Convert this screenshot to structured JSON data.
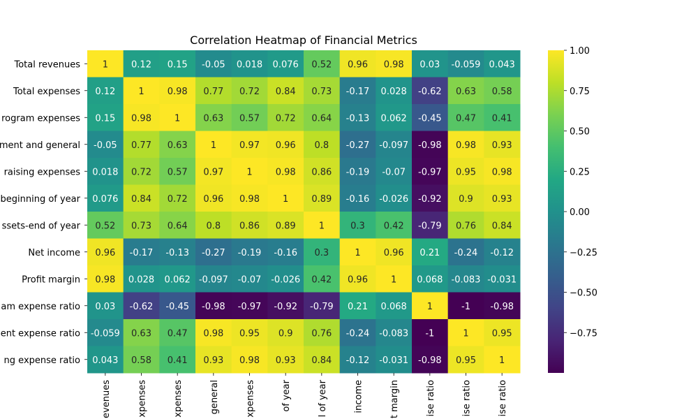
{
  "chart_data": {
    "type": "heatmap",
    "title": "Correlation Heatmap of Financial Metrics",
    "xlabel": "",
    "ylabel": "",
    "colormap": "viridis",
    "vmin": -1,
    "vmax": 1,
    "row_labels": [
      "Total revenues",
      "Total expenses",
      "rogram expenses",
      "ment and general",
      "raising expenses",
      "beginning of year",
      "ssets-end of year",
      "Net income",
      "Profit margin",
      "am expense ratio",
      "ent expense ratio",
      "ng expense ratio"
    ],
    "col_labels": [
      "evenues",
      "xpenses",
      "xpenses",
      "general",
      "xpenses",
      "of year",
      "l of year",
      "income",
      "t margin",
      "ise ratio",
      "ise ratio",
      "ise ratio"
    ],
    "values": [
      [
        1,
        0.12,
        0.15,
        -0.05,
        0.018,
        0.076,
        0.52,
        0.96,
        0.98,
        0.03,
        -0.059,
        0.043
      ],
      [
        0.12,
        1,
        0.98,
        0.77,
        0.72,
        0.84,
        0.73,
        -0.17,
        0.028,
        -0.62,
        0.63,
        0.58
      ],
      [
        0.15,
        0.98,
        1,
        0.63,
        0.57,
        0.72,
        0.64,
        -0.13,
        0.062,
        -0.45,
        0.47,
        0.41
      ],
      [
        -0.05,
        0.77,
        0.63,
        1,
        0.97,
        0.96,
        0.8,
        -0.27,
        -0.097,
        -0.98,
        0.98,
        0.93
      ],
      [
        0.018,
        0.72,
        0.57,
        0.97,
        1,
        0.98,
        0.86,
        -0.19,
        -0.07,
        -0.97,
        0.95,
        0.98
      ],
      [
        0.076,
        0.84,
        0.72,
        0.96,
        0.98,
        1,
        0.89,
        -0.16,
        -0.026,
        -0.92,
        0.9,
        0.93
      ],
      [
        0.52,
        0.73,
        0.64,
        0.8,
        0.86,
        0.89,
        1,
        0.3,
        0.42,
        -0.79,
        0.76,
        0.84
      ],
      [
        0.96,
        -0.17,
        -0.13,
        -0.27,
        -0.19,
        -0.16,
        0.3,
        1,
        0.96,
        0.21,
        -0.24,
        -0.12
      ],
      [
        0.98,
        0.028,
        0.062,
        -0.097,
        -0.07,
        -0.026,
        0.42,
        0.96,
        1,
        0.068,
        -0.083,
        -0.031
      ],
      [
        0.03,
        -0.62,
        -0.45,
        -0.98,
        -0.97,
        -0.92,
        -0.79,
        0.21,
        0.068,
        1,
        -1,
        -0.98
      ],
      [
        -0.059,
        0.63,
        0.47,
        0.98,
        0.95,
        0.9,
        0.76,
        -0.24,
        -0.083,
        -1,
        1,
        0.95
      ],
      [
        0.043,
        0.58,
        0.41,
        0.93,
        0.98,
        0.93,
        0.84,
        -0.12,
        -0.031,
        -0.98,
        0.95,
        1
      ]
    ],
    "colorbar": {
      "ticks": [
        1.0,
        0.75,
        0.5,
        0.25,
        0.0,
        -0.25,
        -0.5,
        -0.75
      ],
      "tick_labels": [
        "1.00",
        "0.75",
        "0.50",
        "0.25",
        "0.00",
        "−0.25",
        "−0.50",
        "−0.75"
      ]
    },
    "legend": "colorbar right",
    "grid": false
  }
}
